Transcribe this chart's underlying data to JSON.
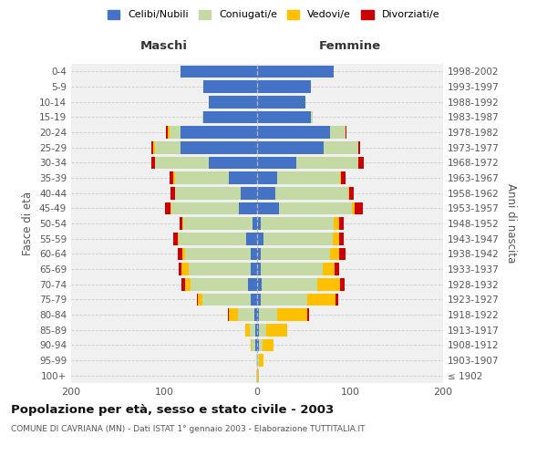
{
  "age_groups": [
    "100+",
    "95-99",
    "90-94",
    "85-89",
    "80-84",
    "75-79",
    "70-74",
    "65-69",
    "60-64",
    "55-59",
    "50-54",
    "45-49",
    "40-44",
    "35-39",
    "30-34",
    "25-29",
    "20-24",
    "15-19",
    "10-14",
    "5-9",
    "0-4"
  ],
  "birth_years": [
    "≤ 1902",
    "1903-1907",
    "1908-1912",
    "1913-1917",
    "1918-1922",
    "1923-1927",
    "1928-1932",
    "1933-1937",
    "1938-1942",
    "1943-1947",
    "1948-1952",
    "1953-1957",
    "1958-1962",
    "1963-1967",
    "1968-1972",
    "1973-1977",
    "1978-1982",
    "1983-1987",
    "1988-1992",
    "1993-1997",
    "1998-2002"
  ],
  "male_celibi": [
    0,
    0,
    2,
    2,
    3,
    7,
    10,
    7,
    7,
    12,
    5,
    20,
    18,
    30,
    52,
    82,
    82,
    58,
    52,
    58,
    82
  ],
  "male_coniugati": [
    1,
    1,
    4,
    6,
    18,
    52,
    62,
    67,
    70,
    72,
    74,
    72,
    70,
    58,
    58,
    28,
    12,
    1,
    0,
    0,
    0
  ],
  "male_vedovi": [
    0,
    0,
    1,
    5,
    9,
    5,
    5,
    7,
    3,
    1,
    1,
    1,
    0,
    2,
    0,
    2,
    2,
    0,
    0,
    0,
    0
  ],
  "male_divorziati": [
    0,
    0,
    0,
    0,
    1,
    1,
    4,
    3,
    5,
    5,
    3,
    6,
    5,
    4,
    4,
    2,
    2,
    0,
    0,
    0,
    0
  ],
  "fem_celibi": [
    0,
    0,
    2,
    2,
    2,
    4,
    5,
    4,
    4,
    7,
    4,
    24,
    20,
    22,
    42,
    72,
    78,
    58,
    52,
    58,
    82
  ],
  "fem_coniugati": [
    0,
    2,
    4,
    8,
    20,
    50,
    60,
    67,
    74,
    74,
    78,
    78,
    78,
    67,
    67,
    37,
    17,
    2,
    0,
    0,
    0
  ],
  "fem_vedovi": [
    2,
    5,
    12,
    22,
    32,
    30,
    24,
    12,
    10,
    7,
    6,
    3,
    1,
    1,
    0,
    0,
    0,
    0,
    0,
    0,
    0
  ],
  "fem_divorziati": [
    0,
    0,
    0,
    0,
    2,
    3,
    5,
    5,
    7,
    5,
    5,
    9,
    5,
    5,
    6,
    2,
    1,
    0,
    0,
    0,
    0
  ],
  "color_celibi": "#4472c4",
  "color_coniugati": "#c5d9a4",
  "color_vedovi": "#ffc000",
  "color_divorziati": "#cc0000",
  "title": "Popolazione per età, sesso e stato civile - 2003",
  "subtitle": "COMUNE DI CAVRIANA (MN) - Dati ISTAT 1° gennaio 2003 - Elaborazione TUTTITALIA.IT",
  "xlabel_left": "Maschi",
  "xlabel_right": "Femmine",
  "ylabel_left": "Fasce di età",
  "ylabel_right": "Anni di nascita",
  "xmin": -200,
  "xmax": 200,
  "bg_color": "#ffffff",
  "plot_bg": "#f0f0f0",
  "grid_color": "#cccccc"
}
